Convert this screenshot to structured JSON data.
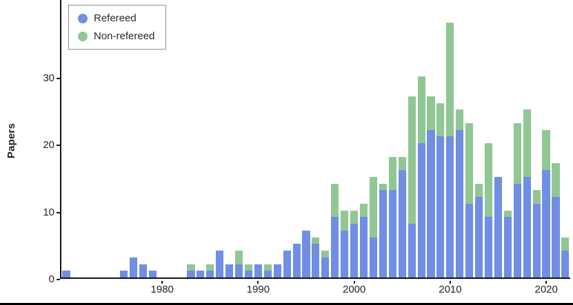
{
  "figure": {
    "ylabel": "Papers",
    "yticks": [
      0,
      10,
      20,
      30
    ],
    "xticks": [
      1980,
      1990,
      2000,
      2010,
      2020
    ],
    "axis_color": "#111111",
    "background": "#ffffff",
    "legend": [
      {
        "id": "refereed",
        "label": "Refereed",
        "color": "#6f8ee4"
      },
      {
        "id": "non-refereed",
        "label": "Non-refereed",
        "color": "#90c795"
      }
    ]
  },
  "chart_data": {
    "type": "bar",
    "stacked": true,
    "title": "",
    "xlabel": "",
    "ylabel": "Papers",
    "ylim": [
      0,
      40
    ],
    "grid": false,
    "legend_position": "top-left",
    "categories": [
      1970,
      1971,
      1972,
      1973,
      1974,
      1975,
      1976,
      1977,
      1978,
      1979,
      1980,
      1981,
      1982,
      1983,
      1984,
      1985,
      1986,
      1987,
      1988,
      1989,
      1990,
      1991,
      1992,
      1993,
      1994,
      1995,
      1996,
      1997,
      1998,
      1999,
      2000,
      2001,
      2002,
      2003,
      2004,
      2005,
      2006,
      2007,
      2008,
      2009,
      2010,
      2011,
      2012,
      2013,
      2014,
      2015,
      2016,
      2017,
      2018,
      2019,
      2020,
      2021,
      2022
    ],
    "series": [
      {
        "name": "Refereed",
        "color": "#6f8ee4",
        "values": [
          1,
          0,
          0,
          0,
          0,
          0,
          1,
          3,
          2,
          1,
          0,
          0,
          0,
          1,
          1,
          1,
          4,
          2,
          2,
          1,
          2,
          1,
          2,
          4,
          5,
          7,
          5,
          3,
          9,
          7,
          8,
          9,
          6,
          13,
          13,
          16,
          8,
          20,
          22,
          21,
          21,
          22,
          11,
          12,
          9,
          15,
          9,
          14,
          15,
          11,
          16,
          12,
          4
        ]
      },
      {
        "name": "Non-refereed",
        "color": "#90c795",
        "values": [
          0,
          0,
          0,
          0,
          0,
          0,
          0,
          0,
          0,
          0,
          0,
          0,
          0,
          1,
          0,
          1,
          0,
          0,
          2,
          1,
          0,
          1,
          0,
          0,
          0,
          0,
          1,
          1,
          5,
          3,
          2,
          2,
          9,
          1,
          5,
          2,
          19,
          10,
          5,
          5,
          17,
          3,
          12,
          2,
          11,
          0,
          1,
          9,
          10,
          2,
          6,
          5,
          2
        ]
      }
    ]
  }
}
